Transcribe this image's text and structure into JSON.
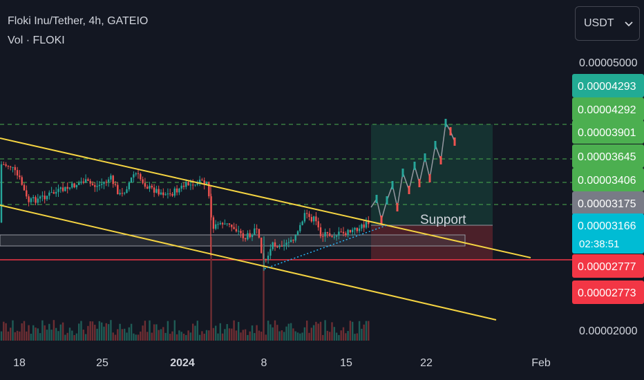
{
  "header": {
    "symbol_line": "Floki Inu/Tether, 4h, GATEIO",
    "volume_line": "Vol · FLOKI"
  },
  "currency_selector": {
    "label": "USDT"
  },
  "chart_data": {
    "type": "candlestick",
    "x_ticks": [
      "18",
      "25",
      "2024",
      "8",
      "15",
      "22",
      "Feb"
    ],
    "y_ticks": [
      "0.00005000",
      "0.00002000"
    ],
    "price_labels": [
      {
        "value": "0.00004293",
        "color": "#22ab94"
      },
      {
        "value": "0.00004292",
        "color": "#4caf50"
      },
      {
        "value": "0.00003901",
        "color": "#4caf50"
      },
      {
        "value": "0.00003645",
        "color": "#4caf50"
      },
      {
        "value": "0.00003406",
        "color": "#4caf50"
      },
      {
        "value": "0.00003175",
        "color": "#787b86"
      },
      {
        "value": "0.00003166",
        "color": "#00bcd4",
        "countdown": "02:38:51"
      },
      {
        "value": "0.00002777",
        "color": "#f23645"
      },
      {
        "value": "0.00002773",
        "color": "#f23645"
      }
    ],
    "horizontal_levels": [
      "0.00003901",
      "0.00003645",
      "0.00003406",
      "0.00003175"
    ],
    "annotations": [
      "Support"
    ],
    "colors": {
      "up": "#26a69a",
      "down": "#ef5350",
      "channel": "#f5d442",
      "level_dashed": "#4caf50",
      "red_level": "#f23645",
      "dotted_trend": "#29b6f6"
    }
  }
}
